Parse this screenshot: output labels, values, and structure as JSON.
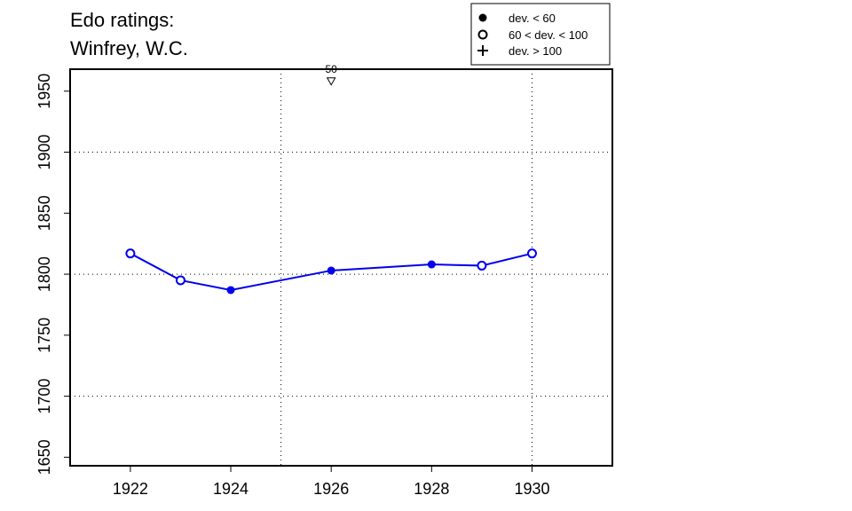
{
  "chart_data": {
    "type": "line",
    "title_lines": [
      "Edo ratings:",
      "Winfrey, W.C."
    ],
    "xlabel": "",
    "ylabel": "",
    "xlim": [
      1920.8,
      1931.6
    ],
    "ylim": [
      1643,
      1968
    ],
    "x_ticks": [
      1922,
      1924,
      1926,
      1928,
      1930
    ],
    "y_ticks": [
      1650,
      1700,
      1750,
      1800,
      1850,
      1900,
      1950
    ],
    "grid": {
      "vertical": [
        1925,
        1930
      ],
      "horizontal": [
        1700,
        1800,
        1900
      ]
    },
    "line_color": "#0000ee",
    "series": [
      {
        "points": [
          {
            "x": 1922,
            "y": 1817,
            "marker": "open"
          },
          {
            "x": 1923,
            "y": 1795,
            "marker": "open"
          },
          {
            "x": 1924,
            "y": 1787,
            "marker": "filled"
          },
          {
            "x": 1926,
            "y": 1803,
            "marker": "filled"
          },
          {
            "x": 1928,
            "y": 1808,
            "marker": "filled"
          },
          {
            "x": 1929,
            "y": 1807,
            "marker": "open"
          },
          {
            "x": 1930,
            "y": 1817,
            "marker": "open"
          }
        ]
      }
    ],
    "annotations": [
      {
        "x": 1926,
        "y": 1958,
        "marker": "triangle-down",
        "label": "50"
      }
    ],
    "legend": {
      "position": "top-right",
      "entries": [
        {
          "symbol": "filled-circle",
          "label": "dev. < 60"
        },
        {
          "symbol": "open-circle",
          "label": "60 < dev. < 100"
        },
        {
          "symbol": "plus",
          "label": "dev. > 100"
        }
      ]
    }
  }
}
